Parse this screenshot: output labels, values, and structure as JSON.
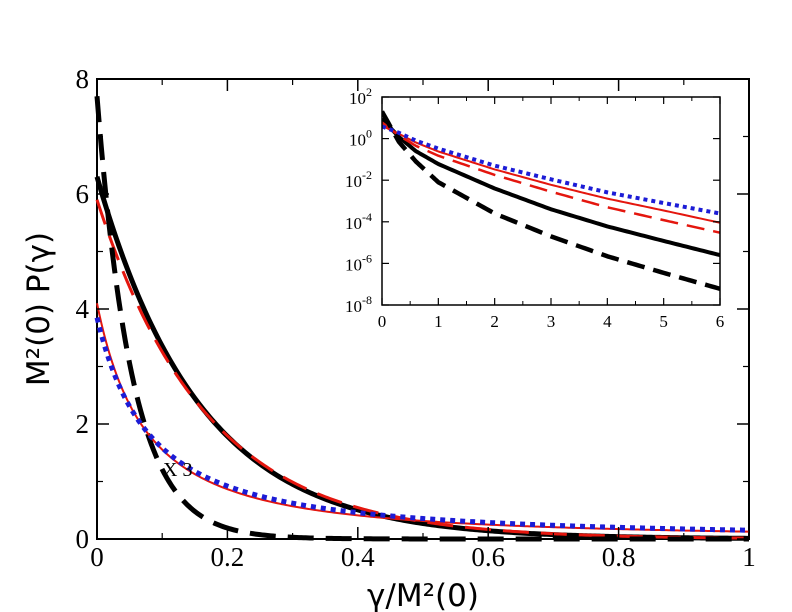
{
  "chart_data": [
    {
      "type": "line",
      "name": "main",
      "xlabel": "γ/M²(0)",
      "ylabel": "M²(0) P(γ)",
      "xlim": [
        0,
        1
      ],
      "ylim": [
        0,
        8
      ],
      "xticks": [
        "0",
        "0.2",
        "0.4",
        "0.6",
        "0.8",
        "1"
      ],
      "yticks": [
        "0",
        "2",
        "4",
        "6",
        "8"
      ],
      "annotation": "X 3",
      "series": [
        {
          "name": "black-solid",
          "color": "#000000",
          "style": "solid",
          "width": 5,
          "type": "exp",
          "a": 6.3,
          "k": 6.3
        },
        {
          "name": "red-long-dash",
          "color": "#e4160e",
          "style": "long-dash",
          "width": 3,
          "type": "exp",
          "a": 5.9,
          "k": 5.95
        },
        {
          "name": "black-long-dash-x3",
          "color": "#000000",
          "style": "long-dash",
          "width": 5,
          "type": "exp",
          "a": 7.7,
          "k": 18.5
        },
        {
          "name": "red-solid",
          "color": "#e4160e",
          "style": "solid",
          "width": 2,
          "type": "pow",
          "a": 4.1,
          "b": 0.11,
          "p": 1.5
        },
        {
          "name": "blue-dotted",
          "color": "#1c1cd6",
          "style": "dotted",
          "width": 5,
          "type": "pow",
          "a": 3.85,
          "b": 0.115,
          "p": 1.42
        }
      ]
    },
    {
      "type": "line",
      "name": "inset",
      "yscale": "log",
      "xlim": [
        0,
        6
      ],
      "ylim": [
        1e-08,
        100
      ],
      "xticks": [
        "0",
        "1",
        "2",
        "3",
        "4",
        "5",
        "6"
      ],
      "yticks": [
        {
          "base": "10",
          "exp": "-8"
        },
        {
          "base": "10",
          "exp": "-6"
        },
        {
          "base": "10",
          "exp": "-4"
        },
        {
          "base": "10",
          "exp": "-2"
        },
        {
          "base": "10",
          "exp": "0"
        },
        {
          "base": "10",
          "exp": "2"
        }
      ],
      "series": [
        {
          "name": "black-solid",
          "color": "#000000",
          "style": "solid",
          "width": 4,
          "points": [
            [
              0,
              9
            ],
            [
              0.3,
              1.2
            ],
            [
              0.6,
              0.25
            ],
            [
              1,
              0.06
            ],
            [
              2,
              0.004
            ],
            [
              3,
              0.0004
            ],
            [
              4,
              6e-05
            ],
            [
              5,
              1.2e-05
            ],
            [
              6,
              2.5e-06
            ]
          ]
        },
        {
          "name": "red-long-dash",
          "color": "#e4160e",
          "style": "long-dash",
          "width": 2.5,
          "points": [
            [
              0,
              6
            ],
            [
              0.3,
              1.4
            ],
            [
              0.6,
              0.45
            ],
            [
              1,
              0.15
            ],
            [
              2,
              0.018
            ],
            [
              3,
              0.0028
            ],
            [
              4,
              0.0005
            ],
            [
              5,
              0.00012
            ],
            [
              6,
              3e-05
            ]
          ]
        },
        {
          "name": "red-solid",
          "color": "#e4160e",
          "style": "solid",
          "width": 2,
          "points": [
            [
              0,
              4.1
            ],
            [
              0.3,
              1.7
            ],
            [
              0.6,
              0.65
            ],
            [
              1,
              0.24
            ],
            [
              2,
              0.033
            ],
            [
              3,
              0.006
            ],
            [
              4,
              0.0013
            ],
            [
              5,
              0.00035
            ],
            [
              6,
              9e-05
            ]
          ]
        },
        {
          "name": "blue-dotted",
          "color": "#1c1cd6",
          "style": "dotted",
          "width": 4,
          "points": [
            [
              0,
              3.85
            ],
            [
              0.3,
              1.9
            ],
            [
              0.6,
              0.8
            ],
            [
              1,
              0.33
            ],
            [
              2,
              0.05
            ],
            [
              3,
              0.011
            ],
            [
              4,
              0.0026
            ],
            [
              5,
              0.0008
            ],
            [
              6,
              0.00025
            ]
          ]
        },
        {
          "name": "black-long-dash",
          "color": "#000000",
          "style": "long-dash",
          "width": 4.5,
          "points": [
            [
              0,
              20
            ],
            [
              0.3,
              0.7
            ],
            [
              0.6,
              0.08
            ],
            [
              1,
              0.008
            ],
            [
              2,
              0.00025
            ],
            [
              3,
              2e-05
            ],
            [
              4,
              2.2e-06
            ],
            [
              5,
              3.5e-07
            ],
            [
              6,
              6e-08
            ]
          ]
        }
      ]
    }
  ]
}
